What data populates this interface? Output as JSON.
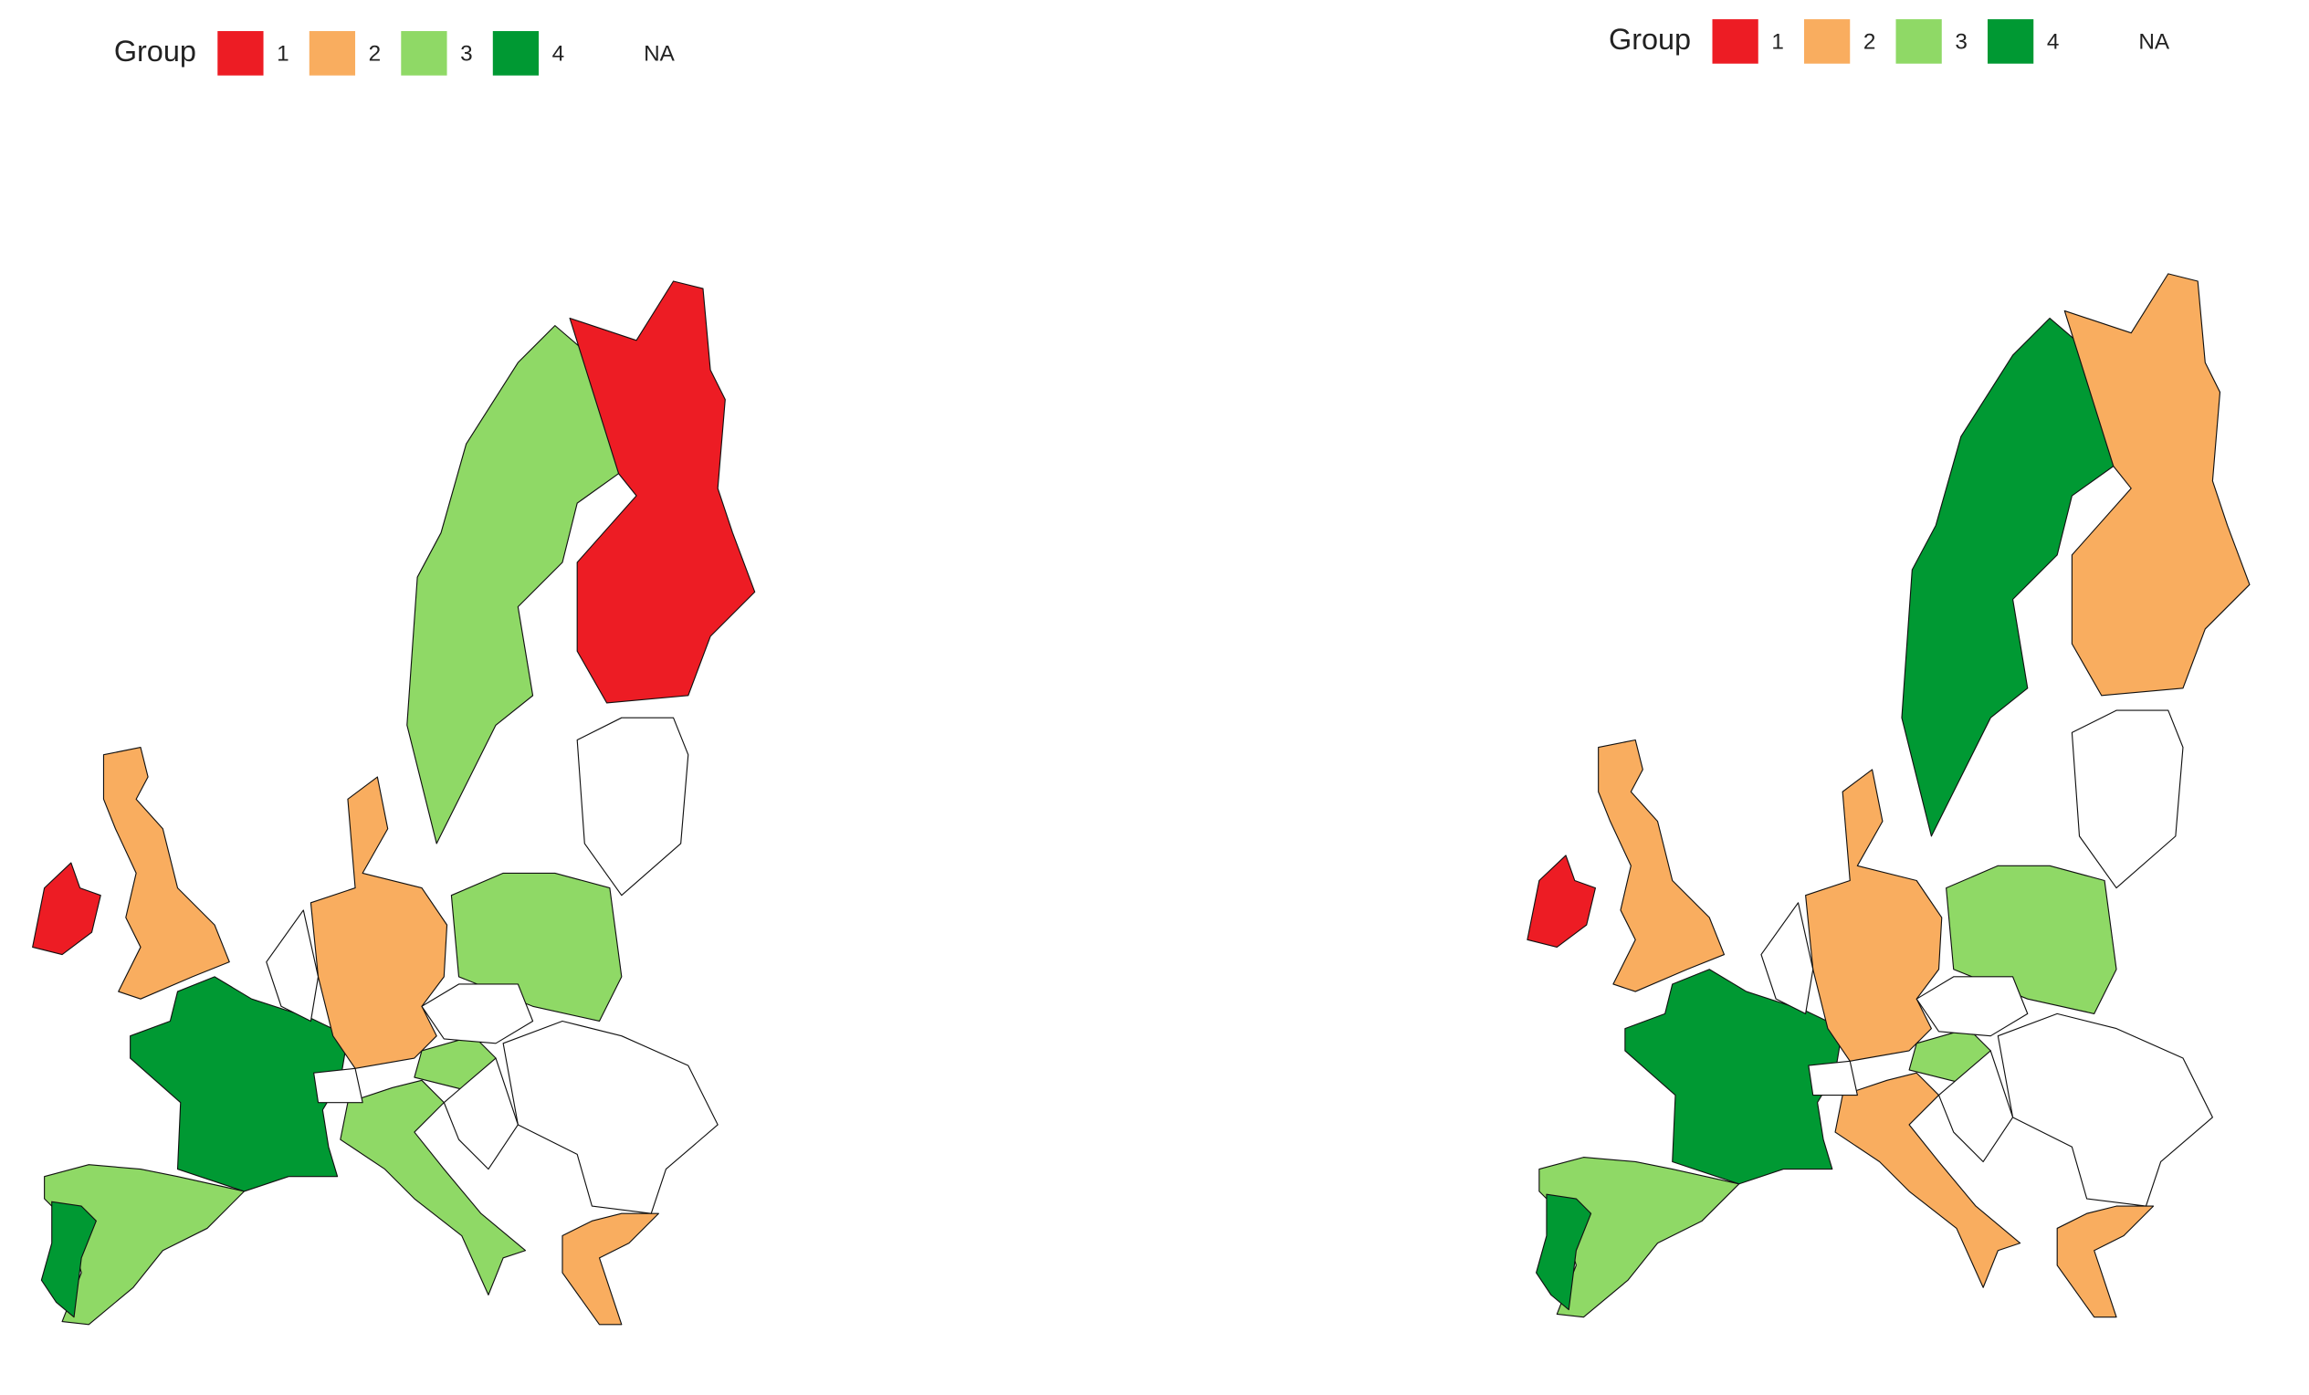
{
  "maps": [
    {
      "legend": {
        "title": "Group",
        "items": [
          {
            "label": "1",
            "color": "#ed1c24"
          },
          {
            "label": "2",
            "color": "#f9ad5f"
          },
          {
            "label": "3",
            "color": "#8fd966"
          },
          {
            "label": "4",
            "color": "#009933"
          },
          {
            "label": "NA",
            "color": "#ffffff"
          }
        ]
      }
    },
    {
      "legend": {
        "title": "Group",
        "items": [
          {
            "label": "1",
            "color": "#ed1c24"
          },
          {
            "label": "2",
            "color": "#f9ad5f"
          },
          {
            "label": "3",
            "color": "#8fd966"
          },
          {
            "label": "4",
            "color": "#009933"
          },
          {
            "label": "NA",
            "color": "#ffffff"
          }
        ]
      }
    }
  ]
}
